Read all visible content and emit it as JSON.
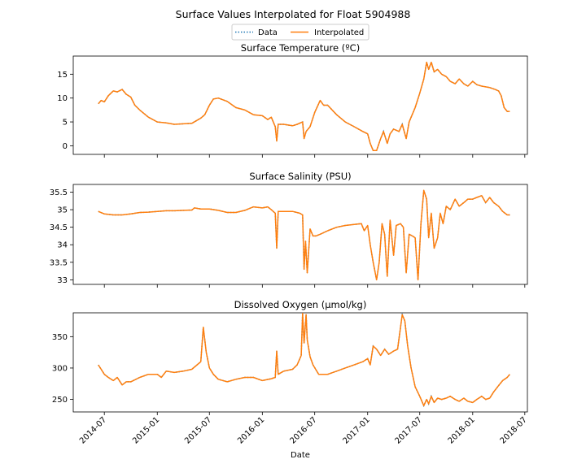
{
  "figure": {
    "title": "Surface Values Interpolated for Float 5904988",
    "xlabel": "Date",
    "legend": {
      "placement": "top-center",
      "entries": [
        {
          "label": "Data",
          "style": "dotted",
          "color": "#1f77b4"
        },
        {
          "label": "Interpolated",
          "style": "solid",
          "color": "#ff7f0e"
        }
      ]
    },
    "x_tick_labels": [
      "2014-07",
      "2015-01",
      "2015-07",
      "2016-01",
      "2016-07",
      "2017-01",
      "2017-07",
      "2018-01",
      "2018-07"
    ]
  },
  "chart_data": [
    {
      "type": "line",
      "title": "Surface Temperature (ºC)",
      "xlim": [
        "2014-03-15",
        "2018-07-10"
      ],
      "ylim": [
        -1.8,
        18.8
      ],
      "yticks": [
        0,
        5,
        10,
        15
      ],
      "series": [
        {
          "name": "Data",
          "color": "#1f77b4",
          "style": "dotted",
          "x": [
            "2014-06-10",
            "2014-06-20",
            "2014-07-01",
            "2014-07-15",
            "2014-08-01",
            "2014-08-15",
            "2014-09-01",
            "2014-09-15",
            "2014-10-01",
            "2014-10-15",
            "2014-11-01",
            "2014-12-01",
            "2015-01-01",
            "2015-02-01",
            "2015-03-01",
            "2015-04-01",
            "2015-05-01",
            "2015-06-01",
            "2015-06-15",
            "2015-07-01",
            "2015-07-15",
            "2015-08-01",
            "2015-09-01",
            "2015-10-01",
            "2015-11-01",
            "2015-12-01",
            "2016-01-01",
            "2016-01-20",
            "2016-02-01",
            "2016-02-15",
            "2016-02-20",
            "2016-02-25",
            "2016-03-15",
            "2016-04-15",
            "2016-05-01",
            "2016-05-20",
            "2016-05-25",
            "2016-06-01",
            "2016-06-15",
            "2016-07-01",
            "2016-07-20",
            "2016-08-01",
            "2016-08-15",
            "2016-09-15",
            "2016-10-15",
            "2016-11-15",
            "2016-12-15",
            "2017-01-01",
            "2017-01-10",
            "2017-01-20",
            "2017-02-01",
            "2017-02-15",
            "2017-02-25",
            "2017-03-10",
            "2017-03-20",
            "2017-04-01",
            "2017-04-20",
            "2017-05-01",
            "2017-05-15",
            "2017-05-25",
            "2017-06-15",
            "2017-07-01",
            "2017-07-15",
            "2017-07-25",
            "2017-08-01",
            "2017-08-10",
            "2017-08-20",
            "2017-09-01",
            "2017-09-15",
            "2017-10-01",
            "2017-10-15",
            "2017-11-01",
            "2017-11-15",
            "2017-12-01",
            "2017-12-15",
            "2018-01-01",
            "2018-01-15",
            "2018-02-01",
            "2018-03-01",
            "2018-03-20",
            "2018-04-01",
            "2018-04-10",
            "2018-04-20",
            "2018-05-01",
            "2018-05-10"
          ],
          "y": [
            8.8,
            9.5,
            9.2,
            10.5,
            11.5,
            11.3,
            11.8,
            10.8,
            10.2,
            8.5,
            7.5,
            6.0,
            5.0,
            4.8,
            4.5,
            4.6,
            4.7,
            5.8,
            6.5,
            8.5,
            9.8,
            10.0,
            9.3,
            8.0,
            7.5,
            6.5,
            6.3,
            5.5,
            6.0,
            4.0,
            1.0,
            4.5,
            4.5,
            4.2,
            4.5,
            5.0,
            1.5,
            3.0,
            4.0,
            7.0,
            9.5,
            8.5,
            8.5,
            6.5,
            5.0,
            4.0,
            3.0,
            2.5,
            0.5,
            -1.0,
            -1.0,
            1.5,
            3.0,
            0.5,
            2.5,
            3.5,
            3.0,
            4.5,
            1.5,
            5.0,
            8.0,
            11.0,
            14.0,
            17.5,
            16.0,
            17.5,
            15.5,
            16.0,
            15.0,
            14.5,
            13.5,
            13.0,
            14.0,
            13.0,
            12.5,
            13.5,
            12.8,
            12.5,
            12.2,
            11.8,
            11.5,
            10.5,
            8.0,
            7.2,
            7.2
          ]
        },
        {
          "name": "Interpolated",
          "color": "#ff7f0e",
          "style": "solid",
          "same_as": "Data"
        }
      ]
    },
    {
      "type": "line",
      "title": "Surface Salinity (PSU)",
      "xlim": [
        "2014-03-15",
        "2018-07-10"
      ],
      "ylim": [
        32.87,
        35.72
      ],
      "yticks": [
        33.0,
        33.5,
        34.0,
        34.5,
        35.0,
        35.5
      ],
      "series": [
        {
          "name": "Data",
          "color": "#1f77b4",
          "style": "dotted",
          "x": [
            "2014-06-10",
            "2014-07-01",
            "2014-08-01",
            "2014-09-01",
            "2014-10-01",
            "2014-11-01",
            "2014-12-01",
            "2015-01-01",
            "2015-02-01",
            "2015-03-01",
            "2015-04-01",
            "2015-05-01",
            "2015-05-10",
            "2015-06-01",
            "2015-07-01",
            "2015-08-01",
            "2015-09-01",
            "2015-10-01",
            "2015-11-01",
            "2015-12-01",
            "2016-01-01",
            "2016-01-20",
            "2016-02-01",
            "2016-02-15",
            "2016-02-20",
            "2016-02-25",
            "2016-03-15",
            "2016-04-15",
            "2016-05-10",
            "2016-05-20",
            "2016-05-25",
            "2016-05-30",
            "2016-06-05",
            "2016-06-15",
            "2016-06-25",
            "2016-07-05",
            "2016-07-20",
            "2016-08-15",
            "2016-09-15",
            "2016-10-15",
            "2016-11-15",
            "2016-12-10",
            "2016-12-20",
            "2017-01-01",
            "2017-01-10",
            "2017-01-20",
            "2017-02-01",
            "2017-02-10",
            "2017-02-20",
            "2017-03-01",
            "2017-03-10",
            "2017-03-20",
            "2017-04-01",
            "2017-04-10",
            "2017-04-25",
            "2017-05-05",
            "2017-05-15",
            "2017-05-25",
            "2017-06-05",
            "2017-06-15",
            "2017-06-25",
            "2017-07-05",
            "2017-07-15",
            "2017-07-25",
            "2017-08-01",
            "2017-08-10",
            "2017-08-20",
            "2017-09-01",
            "2017-09-10",
            "2017-09-20",
            "2017-10-01",
            "2017-10-15",
            "2017-11-01",
            "2017-11-15",
            "2017-12-01",
            "2017-12-15",
            "2018-01-01",
            "2018-01-15",
            "2018-02-01",
            "2018-02-15",
            "2018-03-01",
            "2018-03-15",
            "2018-04-01",
            "2018-04-15",
            "2018-05-01",
            "2018-05-10"
          ],
          "y": [
            34.95,
            34.88,
            34.85,
            34.85,
            34.88,
            34.92,
            34.93,
            34.95,
            34.97,
            34.97,
            34.98,
            34.99,
            35.05,
            35.02,
            35.02,
            34.98,
            34.92,
            34.92,
            34.98,
            35.08,
            35.05,
            35.08,
            35.0,
            34.9,
            33.9,
            34.95,
            34.95,
            34.95,
            34.9,
            34.85,
            33.3,
            34.1,
            33.2,
            34.45,
            34.25,
            34.25,
            34.3,
            34.4,
            34.5,
            34.55,
            34.58,
            34.6,
            34.4,
            34.55,
            34.0,
            33.5,
            33.0,
            33.5,
            34.6,
            34.3,
            33.1,
            34.7,
            33.7,
            34.55,
            34.6,
            34.5,
            33.2,
            34.3,
            34.25,
            34.2,
            33.0,
            34.6,
            35.55,
            35.3,
            34.2,
            34.9,
            33.9,
            34.2,
            34.9,
            34.6,
            35.1,
            35.0,
            35.3,
            35.1,
            35.2,
            35.3,
            35.3,
            35.35,
            35.4,
            35.2,
            35.35,
            35.2,
            35.1,
            34.95,
            34.85,
            34.85
          ]
        },
        {
          "name": "Interpolated",
          "color": "#ff7f0e",
          "style": "solid",
          "same_as": "Data"
        }
      ]
    },
    {
      "type": "line",
      "title": "Dissolved Oxygen (µmol/kg)",
      "xlim": [
        "2014-03-15",
        "2018-07-10"
      ],
      "ylim": [
        230,
        388
      ],
      "yticks": [
        250,
        300,
        350
      ],
      "series": [
        {
          "name": "Data",
          "color": "#1f77b4",
          "style": "dotted",
          "x": [
            "2014-06-10",
            "2014-06-20",
            "2014-07-01",
            "2014-07-15",
            "2014-08-01",
            "2014-08-15",
            "2014-09-01",
            "2014-09-15",
            "2014-10-01",
            "2014-11-01",
            "2014-12-01",
            "2015-01-01",
            "2015-01-15",
            "2015-02-01",
            "2015-03-01",
            "2015-04-01",
            "2015-05-01",
            "2015-06-01",
            "2015-06-10",
            "2015-06-20",
            "2015-07-01",
            "2015-07-15",
            "2015-08-01",
            "2015-09-01",
            "2015-10-01",
            "2015-11-01",
            "2015-12-01",
            "2016-01-01",
            "2016-02-01",
            "2016-02-15",
            "2016-02-20",
            "2016-02-25",
            "2016-03-15",
            "2016-04-15",
            "2016-05-01",
            "2016-05-15",
            "2016-05-20",
            "2016-05-25",
            "2016-06-01",
            "2016-06-05",
            "2016-06-15",
            "2016-06-25",
            "2016-07-15",
            "2016-08-15",
            "2016-09-15",
            "2016-10-15",
            "2016-11-15",
            "2016-12-15",
            "2017-01-01",
            "2017-01-10",
            "2017-01-20",
            "2017-02-01",
            "2017-02-15",
            "2017-03-01",
            "2017-03-15",
            "2017-04-01",
            "2017-04-15",
            "2017-05-01",
            "2017-05-10",
            "2017-05-20",
            "2017-06-01",
            "2017-06-15",
            "2017-07-01",
            "2017-07-15",
            "2017-07-25",
            "2017-08-01",
            "2017-08-10",
            "2017-08-20",
            "2017-09-01",
            "2017-09-15",
            "2017-10-01",
            "2017-10-15",
            "2017-11-01",
            "2017-11-15",
            "2017-12-01",
            "2017-12-15",
            "2018-01-01",
            "2018-01-15",
            "2018-02-01",
            "2018-02-15",
            "2018-03-01",
            "2018-03-15",
            "2018-04-01",
            "2018-04-15",
            "2018-05-01",
            "2018-05-10"
          ],
          "y": [
            305,
            298,
            290,
            285,
            280,
            285,
            273,
            278,
            278,
            285,
            290,
            290,
            285,
            295,
            293,
            295,
            298,
            310,
            365,
            325,
            300,
            290,
            282,
            278,
            282,
            285,
            285,
            280,
            283,
            285,
            327,
            290,
            295,
            298,
            305,
            320,
            387,
            340,
            385,
            345,
            318,
            305,
            290,
            290,
            295,
            300,
            305,
            310,
            315,
            305,
            335,
            330,
            320,
            330,
            322,
            327,
            330,
            385,
            375,
            335,
            300,
            270,
            255,
            240,
            250,
            243,
            255,
            245,
            252,
            250,
            252,
            255,
            250,
            247,
            252,
            247,
            245,
            250,
            255,
            250,
            252,
            262,
            272,
            280,
            285,
            290
          ]
        },
        {
          "name": "Interpolated",
          "color": "#ff7f0e",
          "style": "solid",
          "same_as": "Data"
        }
      ]
    }
  ]
}
